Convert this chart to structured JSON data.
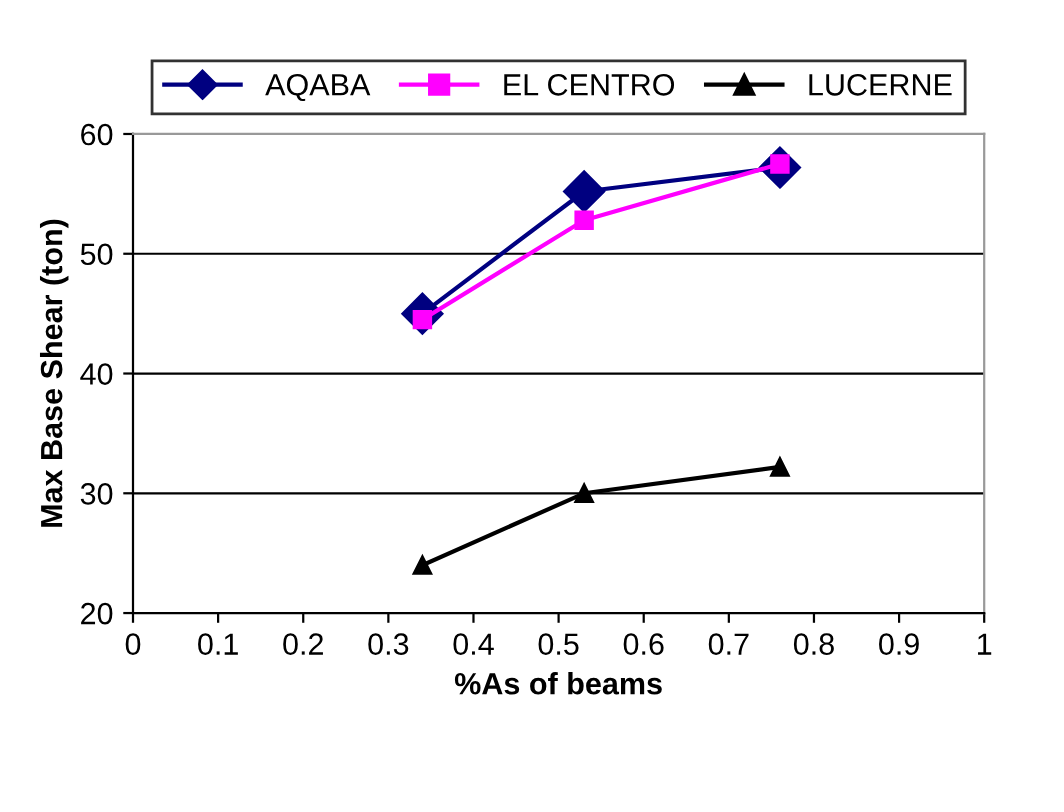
{
  "chart_data": {
    "type": "line",
    "xlabel": "%As of beams",
    "ylabel": "Max Base Shear (ton)",
    "x": [
      0.34,
      0.53,
      0.76
    ],
    "series": [
      {
        "name": "AQABA",
        "color": "#000080",
        "values": [
          45,
          55.2,
          57.2
        ],
        "marker": "diamond"
      },
      {
        "name": "EL CENTRO",
        "color": "#ff00ff",
        "values": [
          44.5,
          52.8,
          57.5
        ],
        "marker": "square"
      },
      {
        "name": "LUCERNE",
        "color": "#000000",
        "values": [
          24,
          30,
          32.2
        ],
        "marker": "triangle"
      }
    ],
    "xlim": [
      0,
      1
    ],
    "xticks": [
      0,
      0.1,
      0.2,
      0.3,
      0.4,
      0.5,
      0.6,
      0.7,
      0.8,
      0.9,
      1
    ],
    "ylim": [
      20,
      60
    ],
    "yticks": [
      20,
      30,
      40,
      50,
      60
    ],
    "grid": "y",
    "legend": "top",
    "line_style": "solid"
  }
}
